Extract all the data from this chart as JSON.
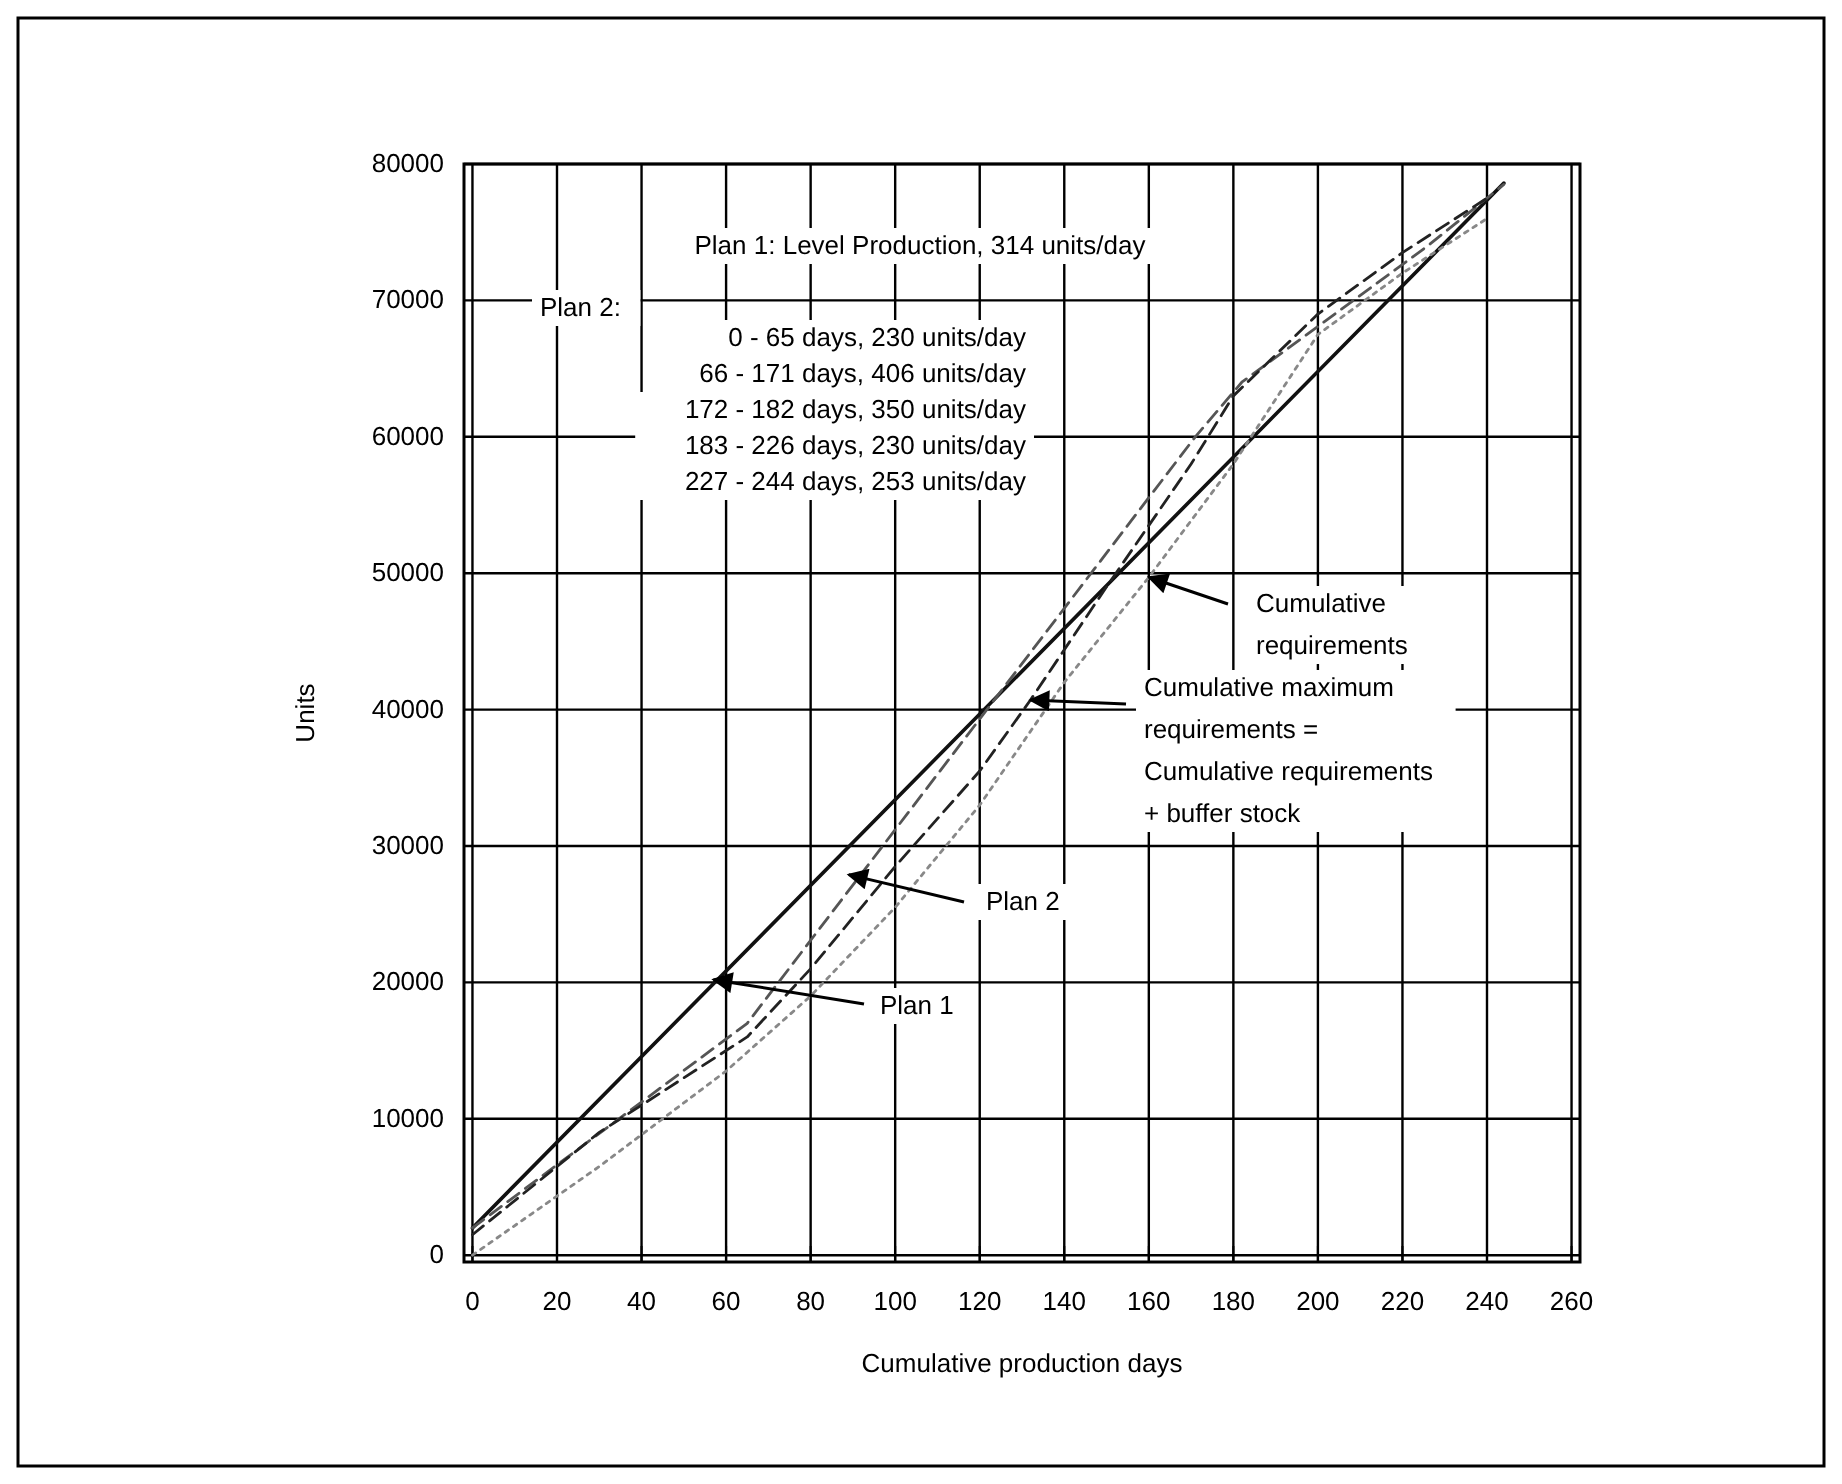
{
  "chart_data": {
    "type": "line",
    "xlabel": "Cumulative production days",
    "ylabel": "Units",
    "xlim": [
      -2,
      262
    ],
    "ylim": [
      -500,
      80000
    ],
    "xticks": [
      0,
      20,
      40,
      60,
      80,
      100,
      120,
      140,
      160,
      180,
      200,
      220,
      240,
      260
    ],
    "yticks": [
      0,
      10000,
      20000,
      30000,
      40000,
      50000,
      60000,
      70000,
      80000
    ],
    "grid": true,
    "series": [
      {
        "color": "#111111",
        "line_style": "solid",
        "x": [
          0,
          244
        ],
        "values": [
          2000,
          78600
        ]
      },
      {
        "color": "#555555",
        "line_style": "dashed",
        "x": [
          0,
          65,
          171,
          182,
          226,
          244
        ],
        "values": [
          2000,
          17000,
          60000,
          64000,
          74000,
          78500
        ]
      },
      {
        "color": "#222222",
        "line_style": "dashed",
        "x": [
          0,
          30,
          65,
          80,
          100,
          120,
          132,
          150,
          170,
          180,
          200,
          220,
          240
        ],
        "values": [
          1500,
          9000,
          16000,
          21000,
          28500,
          35500,
          40700,
          49000,
          58000,
          63000,
          69000,
          73500,
          77500
        ]
      },
      {
        "color": "#888888",
        "line_style": "dotted",
        "x": [
          0,
          30,
          60,
          80,
          100,
          120,
          140,
          160,
          180,
          200,
          220,
          240
        ],
        "values": [
          0,
          6500,
          13500,
          19000,
          25500,
          33000,
          42000,
          49700,
          58000,
          67500,
          72000,
          76000
        ]
      }
    ],
    "annotations": [
      "Plan 1: Level Production, 314 units/day",
      "Plan 2:",
      "0 - 65 days, 230 units/day",
      "66 - 171 days, 406 units/day",
      "172 - 182 days, 350 units/day",
      "183 - 226 days, 230 units/day",
      "227 - 244 days, 253 units/day",
      {
        "text": "Cumulative requirements",
        "x": 160,
        "y": 49700
      },
      {
        "text": "Cumulative maximum requirements = Cumulative requirements + buffer stock",
        "x": 132,
        "y": 40700
      },
      {
        "text": "Plan 2",
        "x": 89,
        "y": 27900
      },
      {
        "text": "Plan 1",
        "x": 57,
        "y": 20200
      }
    ]
  }
}
